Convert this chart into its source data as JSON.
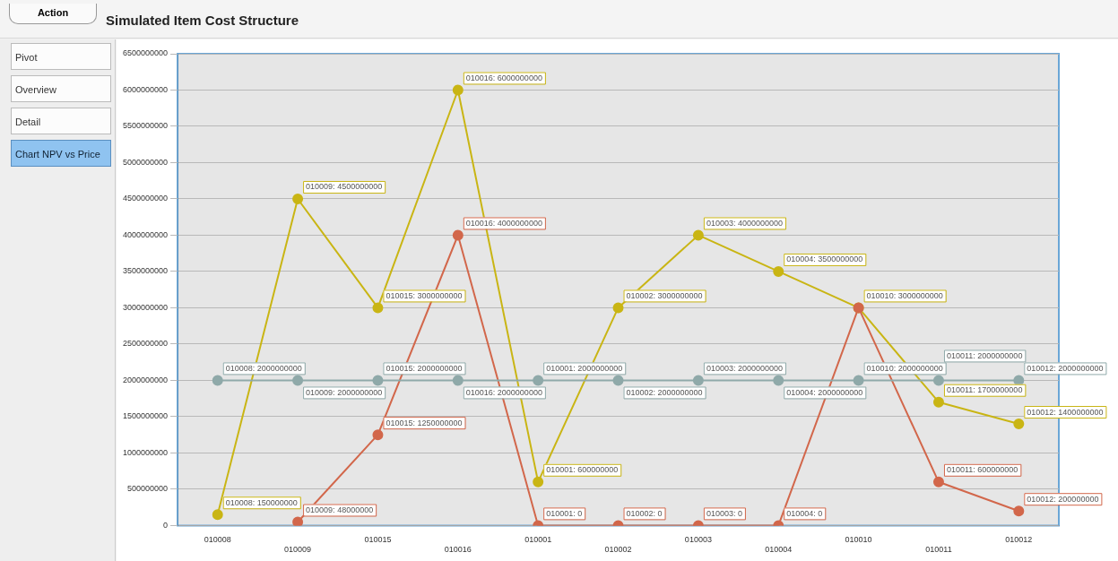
{
  "chart_data": {
    "type": "line",
    "title": "Simulated Item Cost Structure",
    "annotations": [
      "Action",
      "Pivot",
      "Overview",
      "Detail",
      "Chart NPV vs Price"
    ],
    "categories": [
      "010008",
      "010009",
      "010015",
      "010016",
      "010001",
      "010002",
      "010003",
      "010004",
      "010010",
      "010011",
      "010012"
    ],
    "series": [
      {
        "color": "#c9b514",
        "values": [
          150000000,
          4500000000,
          3000000000,
          6000000000,
          600000000,
          3000000000,
          4000000000,
          3500000000,
          3000000000,
          1700000000,
          1400000000
        ],
        "value_labels": [
          "010008: 150000000",
          "010009: 4500000000",
          "010015: 3000000000",
          "010016: 6000000000",
          "010001: 600000000",
          "010002: 3000000000",
          "010003: 4000000000",
          "010004: 3500000000",
          "010010: 3000000000",
          "010011: 1700000000",
          "010012: 1400000000"
        ]
      },
      {
        "color": "#d2674b",
        "values": [
          null,
          48000000,
          1250000000,
          4000000000,
          0,
          0,
          0,
          0,
          3000000000,
          600000000,
          200000000
        ],
        "value_labels": [
          null,
          "010009: 48000000",
          "010015: 1250000000",
          "010016: 4000000000",
          "010001: 0",
          "010002: 0",
          "010003: 0",
          "010004: 0",
          null,
          "010011: 600000000",
          "010012: 200000000"
        ]
      },
      {
        "color": "#8fa9a9",
        "values": [
          2000000000,
          2000000000,
          2000000000,
          2000000000,
          2000000000,
          2000000000,
          2000000000,
          2000000000,
          2000000000,
          2000000000,
          2000000000
        ],
        "value_labels": [
          "010008: 2000000000",
          "010009: 2000000000",
          "010015: 2000000000",
          "010016: 2000000000",
          "010001: 2000000000",
          "010002: 2000000000",
          "010003: 2000000000",
          "010004: 2000000000",
          "010010: 2000000000",
          "010011: 2000000000",
          "010012: 2000000000"
        ]
      }
    ],
    "ylim": [
      0,
      6500000000
    ],
    "yticks": [
      0,
      500000000,
      1000000000,
      1500000000,
      2000000000,
      2500000000,
      3000000000,
      3500000000,
      4000000000,
      4500000000,
      5000000000,
      5500000000,
      6000000000,
      6500000000
    ],
    "grid": "y",
    "legend": false,
    "marker": "circle",
    "line_style": "solid"
  }
}
